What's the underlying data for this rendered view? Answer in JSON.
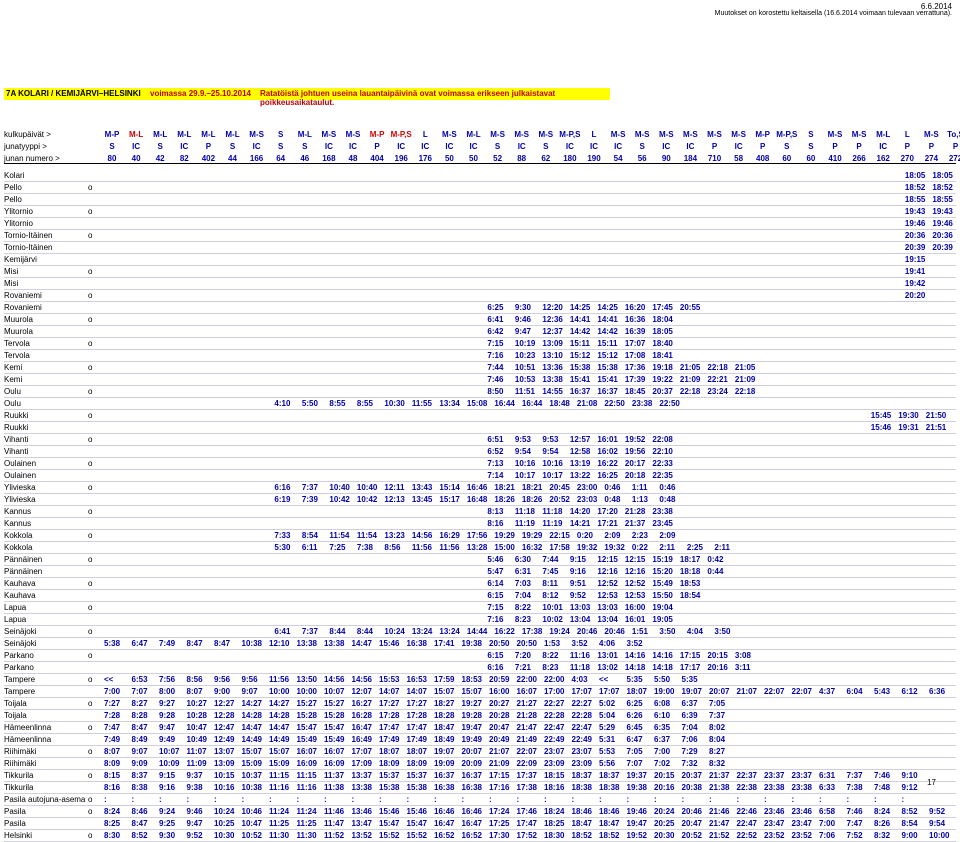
{
  "header": {
    "date": "6.6.2014",
    "notice": "Muutokset on korostettu keltaisella (16.6.2014 voimaan tulevaan verrattuna).",
    "route": "7A KOLARI / KEMIJÄRVI–HELSINKI",
    "validity": "voimassa 29.9.–25.10.2014",
    "alert": "Ratatöistä johtuen useina lauantaipäivinä ovat voimassa erikseen julkaistavat poikkeusaikataulut."
  },
  "table": {
    "row_labels": [
      "kulkupäivät >",
      "junatyyppi >",
      "junan numero >"
    ],
    "days": [
      "M-P",
      "M-L",
      "M-L",
      "M-L",
      "M-L",
      "M-L",
      "M-S",
      "S",
      "M-L",
      "M-S",
      "M-S",
      "M-P",
      "M-P,S",
      "L",
      "M-S",
      "M-L",
      "M-S",
      "M-S",
      "M-S",
      "M-P,S",
      "L",
      "M-S",
      "M-S",
      "M-S",
      "M-S",
      "M-S",
      "M-S",
      "M-P",
      "M-P,S",
      "S",
      "M-S",
      "M-S",
      "M-L",
      "L",
      "M-S",
      "To,S"
    ],
    "types": [
      "S",
      "IC",
      "S",
      "IC",
      "P",
      "S",
      "IC",
      "S",
      "S",
      "IC",
      "IC",
      "P",
      "IC",
      "IC",
      "IC",
      "IC",
      "S",
      "IC",
      "S",
      "IC",
      "IC",
      "IC",
      "S",
      "IC",
      "IC",
      "P",
      "IC",
      "P",
      "S",
      "S",
      "P",
      "P",
      "IC",
      "P",
      "P",
      "P"
    ],
    "numbers": [
      "80",
      "40",
      "42",
      "82",
      "402",
      "44",
      "166",
      "64",
      "46",
      "168",
      "48",
      "404",
      "196",
      "176",
      "50",
      "50",
      "52",
      "88",
      "62",
      "180",
      "190",
      "54",
      "56",
      "90",
      "184",
      "710",
      "58",
      "408",
      "60",
      "60",
      "410",
      "266",
      "162",
      "270",
      "274",
      "272"
    ],
    "stations": [
      {
        "name": "Kolari",
        "mark": "",
        "times": [
          "18:05",
          "18:05"
        ]
      },
      {
        "name": "Pello",
        "mark": "o",
        "times": [
          "18:52",
          "18:52"
        ]
      },
      {
        "name": "Pello",
        "mark": "",
        "times": [
          "18:55",
          "18:55"
        ]
      },
      {
        "name": "Ylitornio",
        "mark": "o",
        "times": [
          "19:43",
          "19:43"
        ]
      },
      {
        "name": "Ylitornio",
        "mark": "",
        "times": [
          "19:46",
          "19:46"
        ]
      },
      {
        "name": "Tornio-Itäinen",
        "mark": "o",
        "times": [
          "20:36",
          "20:36"
        ]
      },
      {
        "name": "Tornio-Itäinen",
        "mark": "",
        "times": [
          "20:39",
          "20:39"
        ]
      },
      {
        "name": "Kemijärvi",
        "mark": "",
        "times": [
          "19:15"
        ]
      },
      {
        "name": "Misi",
        "mark": "o",
        "times": [
          "19:41"
        ]
      },
      {
        "name": "Misi",
        "mark": "",
        "times": [
          "19:42"
        ]
      },
      {
        "name": "Rovaniemi",
        "mark": "o",
        "times": [
          "20:20"
        ]
      },
      {
        "name": "Rovaniemi",
        "mark": "",
        "times": [
          "6:25",
          "9:30",
          "12:20",
          "14:25",
          "14:25",
          "16:20",
          "17:45",
          "20:55"
        ]
      },
      {
        "name": "Muurola",
        "mark": "o",
        "times": [
          "6:41",
          "9:46",
          "12:36",
          "14:41",
          "14:41",
          "16:36",
          "18:04"
        ]
      },
      {
        "name": "Muurola",
        "mark": "",
        "times": [
          "6:42",
          "9:47",
          "12:37",
          "14:42",
          "14:42",
          "16:39",
          "18:05"
        ]
      },
      {
        "name": "Tervola",
        "mark": "o",
        "times": [
          "7:15",
          "10:19",
          "13:09",
          "15:11",
          "15:11",
          "17:07",
          "18:40"
        ]
      },
      {
        "name": "Tervola",
        "mark": "",
        "times": [
          "7:16",
          "10:23",
          "13:10",
          "15:12",
          "15:12",
          "17:08",
          "18:41"
        ]
      },
      {
        "name": "Kemi",
        "mark": "o",
        "times": [
          "7:44",
          "10:51",
          "13:36",
          "15:38",
          "15:38",
          "17:36",
          "19:18",
          "21:05",
          "22:18",
          "21:05"
        ]
      },
      {
        "name": "Kemi",
        "mark": "",
        "times": [
          "7:46",
          "10:53",
          "13:38",
          "15:41",
          "15:41",
          "17:39",
          "19:22",
          "21:09",
          "22:21",
          "21:09"
        ]
      },
      {
        "name": "Oulu",
        "mark": "o",
        "times": [
          "8:50",
          "11:51",
          "14:55",
          "16:37",
          "16:37",
          "18:45",
          "20:37",
          "22:18",
          "23:24",
          "22:18"
        ]
      },
      {
        "name": "Oulu",
        "mark": "",
        "times": [
          "4:10",
          "5:50",
          "8:55",
          "8:55",
          "10:30",
          "11:55",
          "13:34",
          "15:08",
          "16:44",
          "16:44",
          "18:48",
          "21:08",
          "22:50",
          "23:38",
          "22:50"
        ]
      },
      {
        "name": "Ruukki",
        "mark": "o",
        "times": [
          "15:45",
          "19:30",
          "21:50"
        ]
      },
      {
        "name": "Ruukki",
        "mark": "",
        "times": [
          "15:46",
          "19:31",
          "21:51"
        ]
      },
      {
        "name": "Vihanti",
        "mark": "o",
        "times": [
          "6:51",
          "9:53",
          "9:53",
          "12:57",
          "16:01",
          "19:52",
          "22:08"
        ]
      },
      {
        "name": "Vihanti",
        "mark": "",
        "times": [
          "6:52",
          "9:54",
          "9:54",
          "12:58",
          "16:02",
          "19:56",
          "22:10"
        ]
      },
      {
        "name": "Oulainen",
        "mark": "o",
        "times": [
          "7:13",
          "10:16",
          "10:16",
          "13:19",
          "16:22",
          "20:17",
          "22:33"
        ]
      },
      {
        "name": "Oulainen",
        "mark": "",
        "times": [
          "7:14",
          "10:17",
          "10:17",
          "13:22",
          "16:25",
          "20:18",
          "22:35"
        ]
      },
      {
        "name": "Ylivieska",
        "mark": "o",
        "times": [
          "6:16",
          "7:37",
          "10:40",
          "10:40",
          "12:11",
          "13:43",
          "15:14",
          "16:46",
          "18:21",
          "18:21",
          "20:45",
          "23:00",
          "0:46",
          "1:11",
          "0:46"
        ]
      },
      {
        "name": "Ylivieska",
        "mark": "",
        "times": [
          "6:19",
          "7:39",
          "10:42",
          "10:42",
          "12:13",
          "13:45",
          "15:17",
          "16:48",
          "18:26",
          "18:26",
          "20:52",
          "23:03",
          "0:48",
          "1:13",
          "0:48"
        ]
      },
      {
        "name": "Kannus",
        "mark": "o",
        "times": [
          "8:13",
          "11:18",
          "11:18",
          "14:20",
          "17:20",
          "21:28",
          "23:38"
        ]
      },
      {
        "name": "Kannus",
        "mark": "",
        "times": [
          "8:16",
          "11:19",
          "11:19",
          "14:21",
          "17:21",
          "21:37",
          "23:45"
        ]
      },
      {
        "name": "Kokkola",
        "mark": "o",
        "times": [
          "7:33",
          "8:54",
          "11:54",
          "11:54",
          "13:23",
          "14:56",
          "16:29",
          "17:56",
          "19:29",
          "19:29",
          "22:15",
          "0:20",
          "2:09",
          "2:23",
          "2:09"
        ]
      },
      {
        "name": "Kokkola",
        "mark": "",
        "times": [
          "5:30",
          "6:11",
          "7:25",
          "7:38",
          "8:56",
          "11:56",
          "11:56",
          "13:28",
          "15:00",
          "16:32",
          "17:58",
          "19:32",
          "19:32",
          "0:22",
          "2:11",
          "2:25",
          "2:11"
        ]
      },
      {
        "name": "Pännäinen",
        "mark": "o",
        "times": [
          "5:46",
          "6:30",
          "7:44",
          "9:15",
          "12:15",
          "12:15",
          "15:19",
          "18:17",
          "0:42"
        ]
      },
      {
        "name": "Pännäinen",
        "mark": "",
        "times": [
          "5:47",
          "6:31",
          "7:45",
          "9:16",
          "12:16",
          "12:16",
          "15:20",
          "18:18",
          "0:44"
        ]
      },
      {
        "name": "Kauhava",
        "mark": "o",
        "times": [
          "6:14",
          "7:03",
          "8:11",
          "9:51",
          "12:52",
          "12:52",
          "15:49",
          "18:53"
        ]
      },
      {
        "name": "Kauhava",
        "mark": "",
        "times": [
          "6:15",
          "7:04",
          "8:12",
          "9:52",
          "12:53",
          "12:53",
          "15:50",
          "18:54"
        ]
      },
      {
        "name": "Lapua",
        "mark": "o",
        "times": [
          "7:15",
          "8:22",
          "10:01",
          "13:03",
          "13:03",
          "16:00",
          "19:04"
        ]
      },
      {
        "name": "Lapua",
        "mark": "",
        "times": [
          "7:16",
          "8:23",
          "10:02",
          "13:04",
          "13:04",
          "16:01",
          "19:05"
        ]
      },
      {
        "name": "Seinäjoki",
        "mark": "o",
        "times": [
          "6:41",
          "7:37",
          "8:44",
          "8:44",
          "10:24",
          "13:24",
          "13:24",
          "14:44",
          "16:22",
          "17:38",
          "19:24",
          "20:46",
          "20:46",
          "1:51",
          "3:50",
          "4:04",
          "3:50"
        ]
      },
      {
        "name": "Seinäjoki",
        "mark": "",
        "times": [
          "5:38",
          "6:47",
          "7:49",
          "8:47",
          "8:47",
          "10:38",
          "12:10",
          "13:38",
          "13:38",
          "14:47",
          "15:46",
          "16:38",
          "17:41",
          "19:38",
          "20:50",
          "20:50",
          "1:53",
          "3:52",
          "4:06",
          "3:52"
        ]
      },
      {
        "name": "Parkano",
        "mark": "o",
        "times": [
          "6:15",
          "7:20",
          "8:22",
          "11:16",
          "13:01",
          "14:16",
          "14:16",
          "17:15",
          "20:15",
          "3:08"
        ]
      },
      {
        "name": "Parkano",
        "mark": "",
        "times": [
          "6:16",
          "7:21",
          "8:23",
          "11:18",
          "13:02",
          "14:18",
          "14:18",
          "17:17",
          "20:16",
          "3:11"
        ]
      },
      {
        "name": "Tampere",
        "mark": "o",
        "times": [
          "<<",
          "6:53",
          "7:56",
          "8:56",
          "9:56",
          "9:56",
          "11:56",
          "13:50",
          "14:56",
          "14:56",
          "15:53",
          "16:53",
          "17:59",
          "18:53",
          "20:59",
          "22:00",
          "22:00",
          "4:03",
          "<<",
          "5:35",
          "5:50",
          "5:35"
        ]
      },
      {
        "name": "Tampere",
        "mark": "",
        "times": [
          "7:00",
          "7:07",
          "8:00",
          "8:07",
          "9:00",
          "9:07",
          "10:00",
          "10:00",
          "10:07",
          "12:07",
          "14:07",
          "14:07",
          "15:07",
          "15:07",
          "16:00",
          "16:07",
          "17:00",
          "17:07",
          "17:07",
          "18:07",
          "19:00",
          "19:07",
          "20:07",
          "21:07",
          "22:07",
          "22:07",
          "4:37",
          "6:04",
          "5:43",
          "6:12",
          "6:36"
        ]
      },
      {
        "name": "Toijala",
        "mark": "o",
        "times": [
          "7:27",
          "8:27",
          "9:27",
          "10:27",
          "12:27",
          "14:27",
          "14:27",
          "15:27",
          "15:27",
          "16:27",
          "17:27",
          "17:27",
          "18:27",
          "19:27",
          "20:27",
          "21:27",
          "22:27",
          "22:27",
          "5:02",
          "6:25",
          "6:08",
          "6:37",
          "7:05"
        ]
      },
      {
        "name": "Toijala",
        "mark": "",
        "times": [
          "7:28",
          "8:28",
          "9:28",
          "10:28",
          "12:28",
          "14:28",
          "14:28",
          "15:28",
          "15:28",
          "16:28",
          "17:28",
          "17:28",
          "18:28",
          "19:28",
          "20:28",
          "21:28",
          "22:28",
          "22:28",
          "5:04",
          "6:26",
          "6:10",
          "6:39",
          "7:37"
        ]
      },
      {
        "name": "Hämeenlinna",
        "mark": "o",
        "times": [
          "7:47",
          "8:47",
          "9:47",
          "10:47",
          "12:47",
          "14:47",
          "14:47",
          "15:47",
          "15:47",
          "16:47",
          "17:47",
          "17:47",
          "18:47",
          "19:47",
          "20:47",
          "21:47",
          "22:47",
          "22:47",
          "5:29",
          "6:45",
          "6:35",
          "7:04",
          "8:02"
        ]
      },
      {
        "name": "Hämeenlinna",
        "mark": "",
        "times": [
          "7:49",
          "8:49",
          "9:49",
          "10:49",
          "12:49",
          "14:49",
          "14:49",
          "15:49",
          "15:49",
          "16:49",
          "17:49",
          "17:49",
          "18:49",
          "19:49",
          "20:49",
          "21:49",
          "22:49",
          "22:49",
          "5:31",
          "6:47",
          "6:37",
          "7:06",
          "8:04"
        ]
      },
      {
        "name": "Riihimäki",
        "mark": "o",
        "times": [
          "8:07",
          "9:07",
          "10:07",
          "11:07",
          "13:07",
          "15:07",
          "15:07",
          "16:07",
          "16:07",
          "17:07",
          "18:07",
          "18:07",
          "19:07",
          "20:07",
          "21:07",
          "22:07",
          "23:07",
          "23:07",
          "5:53",
          "7:05",
          "7:00",
          "7:29",
          "8:27"
        ]
      },
      {
        "name": "Riihimäki",
        "mark": "",
        "times": [
          "8:09",
          "9:09",
          "10:09",
          "11:09",
          "13:09",
          "15:09",
          "15:09",
          "16:09",
          "16:09",
          "17:09",
          "18:09",
          "18:09",
          "19:09",
          "20:09",
          "21:09",
          "22:09",
          "23:09",
          "23:09",
          "5:56",
          "7:07",
          "7:02",
          "7:32",
          "8:32"
        ]
      },
      {
        "name": "Tikkurila",
        "mark": "o",
        "times": [
          "8:15",
          "8:37",
          "9:15",
          "9:37",
          "10:15",
          "10:37",
          "11:15",
          "11:15",
          "11:37",
          "13:37",
          "15:37",
          "15:37",
          "16:37",
          "16:37",
          "17:15",
          "17:37",
          "18:15",
          "18:37",
          "18:37",
          "19:37",
          "20:15",
          "20:37",
          "21:37",
          "22:37",
          "23:37",
          "23:37",
          "6:31",
          "7:37",
          "7:46",
          "9:10"
        ]
      },
      {
        "name": "Tikkurila",
        "mark": "",
        "times": [
          "8:16",
          "8:38",
          "9:16",
          "9:38",
          "10:16",
          "10:38",
          "11:16",
          "11:16",
          "11:38",
          "13:38",
          "15:38",
          "15:38",
          "16:38",
          "16:38",
          "17:16",
          "17:38",
          "18:16",
          "18:38",
          "18:38",
          "19:38",
          "20:16",
          "20:38",
          "21:38",
          "22:38",
          "23:38",
          "23:38",
          "6:33",
          "7:38",
          "7:48",
          "9:12"
        ]
      },
      {
        "name": "Pasila autojuna-asema",
        "mark": "o",
        "times": [
          ":",
          ":",
          ":",
          ":",
          ":",
          ":",
          ":",
          ":",
          ":",
          ":",
          ":",
          ":",
          ":",
          ":",
          ":",
          ":",
          ":",
          ":",
          ":",
          ":",
          ":",
          ":",
          ":",
          ":",
          ":",
          ":",
          ":",
          ":",
          ":",
          ":"
        ]
      },
      {
        "name": "Pasila",
        "mark": "o",
        "times": [
          "8:24",
          "8:46",
          "9:24",
          "9:46",
          "10:24",
          "10:46",
          "11:24",
          "11:24",
          "11:46",
          "13:46",
          "15:46",
          "15:46",
          "16:46",
          "16:46",
          "17:24",
          "17:46",
          "18:24",
          "18:46",
          "18:46",
          "19:46",
          "20:24",
          "20:46",
          "21:46",
          "22:46",
          "23:46",
          "23:46",
          "6:58",
          "7:46",
          "8:24",
          "8:52",
          "9:52"
        ]
      },
      {
        "name": "Pasila",
        "mark": "",
        "times": [
          "8:25",
          "8:47",
          "9:25",
          "9:47",
          "10:25",
          "10:47",
          "11:25",
          "11:25",
          "11:47",
          "13:47",
          "15:47",
          "15:47",
          "16:47",
          "16:47",
          "17:25",
          "17:47",
          "18:25",
          "18:47",
          "18:47",
          "19:47",
          "20:25",
          "20:47",
          "21:47",
          "22:47",
          "23:47",
          "23:47",
          "7:00",
          "7:47",
          "8:26",
          "8:54",
          "9:54"
        ]
      },
      {
        "name": "Helsinki",
        "mark": "o",
        "times": [
          "8:30",
          "8:52",
          "9:30",
          "9:52",
          "10:30",
          "10:52",
          "11:30",
          "11:30",
          "11:52",
          "13:52",
          "15:52",
          "15:52",
          "16:52",
          "16:52",
          "17:30",
          "17:52",
          "18:30",
          "18:52",
          "18:52",
          "19:52",
          "20:30",
          "20:52",
          "21:52",
          "22:52",
          "23:52",
          "23:52",
          "7:06",
          "7:52",
          "8:32",
          "9:00",
          "10:00"
        ]
      }
    ]
  },
  "page_number": "17"
}
